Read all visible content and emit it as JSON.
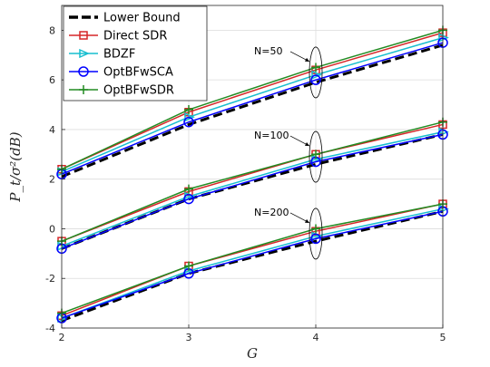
{
  "chart_data": {
    "type": "line",
    "xlabel": "G",
    "ylabel": "P_t/σ²(dB)",
    "xlim": [
      2,
      5
    ],
    "ylim": [
      -4,
      9
    ],
    "x_ticks": [
      2,
      3,
      4,
      5
    ],
    "y_ticks": [
      -4,
      -2,
      0,
      2,
      4,
      6,
      8
    ],
    "grid": true,
    "legend_position": "top-left",
    "x": [
      2,
      3,
      4,
      5
    ],
    "legend": [
      {
        "name": "Lower Bound",
        "color": "#000000",
        "marker": "none",
        "dashed": true
      },
      {
        "name": "Direct SDR",
        "color": "#d62728",
        "marker": "square",
        "dashed": false
      },
      {
        "name": "BDZF",
        "color": "#17becf",
        "marker": "triangle-right",
        "dashed": false
      },
      {
        "name": "OptBFwSCA",
        "color": "#0000ff",
        "marker": "circle",
        "dashed": false
      },
      {
        "name": "OptBFwSDR",
        "color": "#228b22",
        "marker": "plus",
        "dashed": false
      }
    ],
    "groups": [
      {
        "label": "N=50",
        "series": [
          {
            "name": "Lower Bound",
            "values": [
              2.1,
              4.2,
              5.9,
              7.4
            ]
          },
          {
            "name": "Direct SDR",
            "values": [
              2.4,
              4.7,
              6.4,
              7.9
            ]
          },
          {
            "name": "BDZF",
            "values": [
              2.3,
              4.5,
              6.2,
              7.7
            ]
          },
          {
            "name": "OptBFwSCA",
            "values": [
              2.2,
              4.3,
              6.0,
              7.5
            ]
          },
          {
            "name": "OptBFwSDR",
            "values": [
              2.4,
              4.8,
              6.5,
              8.0
            ]
          }
        ]
      },
      {
        "label": "N=100",
        "series": [
          {
            "name": "Lower Bound",
            "values": [
              -0.8,
              1.2,
              2.6,
              3.8
            ]
          },
          {
            "name": "Direct SDR",
            "values": [
              -0.5,
              1.5,
              3.0,
              4.2
            ]
          },
          {
            "name": "BDZF",
            "values": [
              -0.7,
              1.3,
              2.8,
              3.9
            ]
          },
          {
            "name": "OptBFwSCA",
            "values": [
              -0.8,
              1.2,
              2.7,
              3.8
            ]
          },
          {
            "name": "OptBFwSDR",
            "values": [
              -0.5,
              1.6,
              3.0,
              4.3
            ]
          }
        ]
      },
      {
        "label": "N=200",
        "series": [
          {
            "name": "Lower Bound",
            "values": [
              -3.7,
              -1.8,
              -0.5,
              0.7
            ]
          },
          {
            "name": "Direct SDR",
            "values": [
              -3.5,
              -1.5,
              -0.1,
              1.0
            ]
          },
          {
            "name": "BDZF",
            "values": [
              -3.6,
              -1.7,
              -0.3,
              0.8
            ]
          },
          {
            "name": "OptBFwSCA",
            "values": [
              -3.6,
              -1.8,
              -0.4,
              0.7
            ]
          },
          {
            "name": "OptBFwSDR",
            "values": [
              -3.4,
              -1.5,
              0.0,
              1.0
            ]
          }
        ]
      }
    ],
    "annotations": [
      {
        "text": "N=50",
        "x": 4,
        "y": 6.3
      },
      {
        "text": "N=100",
        "x": 4,
        "y": 2.9
      },
      {
        "text": "N=200",
        "x": 4,
        "y": -0.2
      }
    ]
  }
}
